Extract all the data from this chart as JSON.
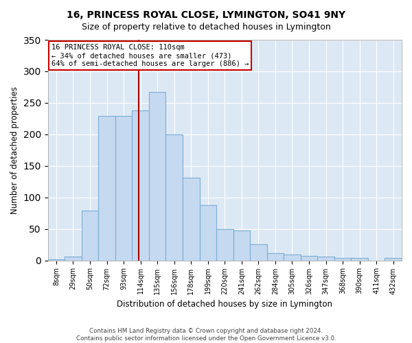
{
  "title": "16, PRINCESS ROYAL CLOSE, LYMINGTON, SO41 9NY",
  "subtitle": "Size of property relative to detached houses in Lymington",
  "xlabel": "Distribution of detached houses by size in Lymington",
  "ylabel": "Number of detached properties",
  "bar_color": "#c5d9f0",
  "bar_edge_color": "#7badd4",
  "background_color": "#dce9f5",
  "grid_color": "#ffffff",
  "bin_labels": [
    "8sqm",
    "29sqm",
    "50sqm",
    "72sqm",
    "93sqm",
    "114sqm",
    "135sqm",
    "156sqm",
    "178sqm",
    "199sqm",
    "220sqm",
    "241sqm",
    "262sqm",
    "284sqm",
    "305sqm",
    "326sqm",
    "347sqm",
    "368sqm",
    "390sqm",
    "411sqm",
    "432sqm"
  ],
  "bar_heights": [
    2,
    6,
    79,
    229,
    229,
    238,
    267,
    200,
    131,
    88,
    50,
    47,
    26,
    12,
    9,
    7,
    6,
    4,
    4,
    0,
    4
  ],
  "vline_x": 4.9,
  "vline_color": "#aa0000",
  "ylim": [
    0,
    350
  ],
  "annotation_text": "16 PRINCESS ROYAL CLOSE: 110sqm\n← 34% of detached houses are smaller (473)\n64% of semi-detached houses are larger (886) →",
  "annotation_box_color": "#ffffff",
  "annotation_box_edge": "#cc0000",
  "footer1": "Contains HM Land Registry data © Crown copyright and database right 2024.",
  "footer2": "Contains public sector information licensed under the Open Government Licence v3.0."
}
